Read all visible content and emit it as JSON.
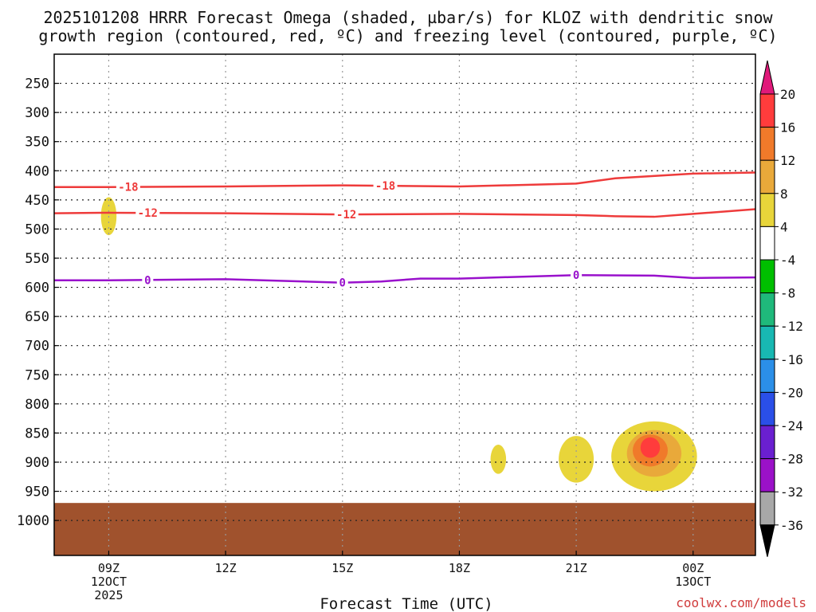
{
  "chart_data": {
    "type": "contour",
    "title_line1": "2025101208 HRRR Forecast Omega (shaded, µbar/s) for KLOZ with dendritic snow",
    "title_line2": "growth region (contoured, red, ºC) and freezing level (contoured, purple, ºC)",
    "xlabel": "Forecast Time (UTC)",
    "credit": "coolwx.com/models",
    "x_domain_hours": [
      7.6,
      25.6
    ],
    "x_ticks": [
      {
        "hour": 9,
        "lines": [
          "09Z",
          "12OCT",
          "2025"
        ]
      },
      {
        "hour": 12,
        "lines": [
          "12Z"
        ]
      },
      {
        "hour": 15,
        "lines": [
          "15Z"
        ]
      },
      {
        "hour": 18,
        "lines": [
          "18Z"
        ]
      },
      {
        "hour": 21,
        "lines": [
          "21Z"
        ]
      },
      {
        "hour": 24,
        "lines": [
          "00Z",
          "13OCT"
        ]
      }
    ],
    "y_ticks": [
      250,
      300,
      350,
      400,
      450,
      500,
      550,
      600,
      650,
      700,
      750,
      800,
      850,
      900,
      950,
      1000
    ],
    "y_range_hpa": [
      200,
      1060
    ],
    "ground_level_hpa": 970,
    "contours": [
      {
        "name": "-18",
        "color": "#ee3b3b",
        "label": "-18",
        "label_hours": [
          9.5,
          16.1
        ],
        "points": [
          [
            7.6,
            428
          ],
          [
            9,
            428
          ],
          [
            12,
            427
          ],
          [
            15,
            425
          ],
          [
            18,
            427
          ],
          [
            21,
            422
          ],
          [
            22,
            413
          ],
          [
            24,
            405
          ],
          [
            25.6,
            403
          ]
        ]
      },
      {
        "name": "-12",
        "color": "#ee3b3b",
        "label": "-12",
        "label_hours": [
          10.0,
          15.1
        ],
        "points": [
          [
            7.6,
            473
          ],
          [
            9,
            472
          ],
          [
            12,
            473
          ],
          [
            15,
            475
          ],
          [
            18,
            474
          ],
          [
            21,
            476
          ],
          [
            22,
            478
          ],
          [
            23,
            479
          ],
          [
            24,
            474
          ],
          [
            25.6,
            466
          ]
        ]
      },
      {
        "name": "0",
        "color": "#9911cc",
        "label": "0",
        "label_hours": [
          10.0,
          15.0,
          21.0
        ],
        "points": [
          [
            7.6,
            588
          ],
          [
            9,
            588
          ],
          [
            12,
            586
          ],
          [
            15,
            592
          ],
          [
            16,
            590
          ],
          [
            17,
            585
          ],
          [
            18,
            585
          ],
          [
            21,
            579
          ],
          [
            23,
            580
          ],
          [
            24,
            584
          ],
          [
            25.6,
            583
          ]
        ]
      }
    ],
    "omega_blobs": [
      {
        "hour": 9.0,
        "p": 478,
        "rx_h": 0.2,
        "ry_p": 65,
        "level": 4
      },
      {
        "hour": 19.0,
        "p": 895,
        "rx_h": 0.2,
        "ry_p": 50,
        "level": 4
      },
      {
        "hour": 21.0,
        "p": 895,
        "rx_h": 0.45,
        "ry_p": 80,
        "level": 4
      },
      {
        "hour": 23.0,
        "p": 890,
        "rx_h": 1.1,
        "ry_p": 120,
        "level": 4
      },
      {
        "hour": 23.0,
        "p": 885,
        "rx_h": 0.7,
        "ry_p": 80,
        "level": 8
      },
      {
        "hour": 22.9,
        "p": 880,
        "rx_h": 0.45,
        "ry_p": 55,
        "level": 12
      },
      {
        "hour": 22.9,
        "p": 875,
        "rx_h": 0.25,
        "ry_p": 35,
        "level": 16
      }
    ],
    "colorbar": {
      "levels": [
        "20",
        "16",
        "12",
        "8",
        "4",
        "-4",
        "-8",
        "-12",
        "-16",
        "-20",
        "-24",
        "-28",
        "-32",
        "-36"
      ],
      "colors": [
        "#ff3c3c",
        "#f07a2a",
        "#e9a93a",
        "#e8d53a",
        "#ffffff",
        "#00bf00",
        "#1fb97b",
        "#18b8b2",
        "#2b8fe8",
        "#2a4fe8",
        "#6a1fd0",
        "#9b11c8",
        "#a8a8a8"
      ],
      "top_color": "#e0197a",
      "bottom_color": "#000000"
    },
    "omega_colors": {
      "4": "#e8d53a",
      "8": "#e9a93a",
      "12": "#f07a2a",
      "16": "#ff3c3c"
    },
    "ground_color": "#a0522d"
  }
}
